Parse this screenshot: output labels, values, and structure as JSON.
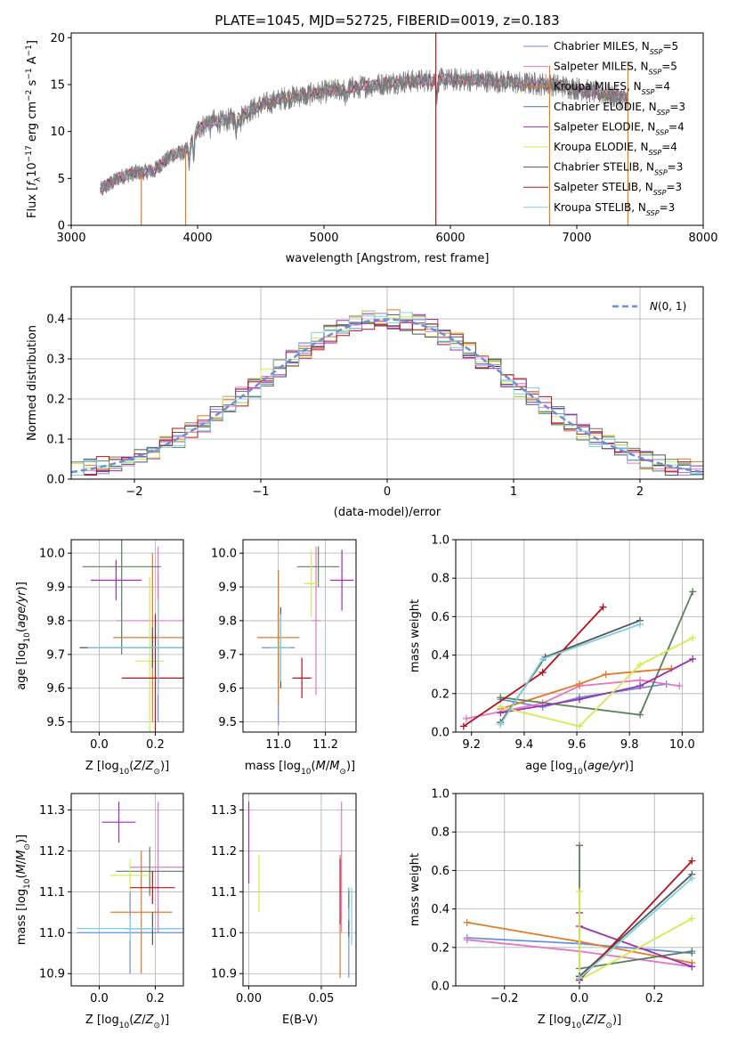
{
  "figure": {
    "title": "PLATE=1045, MJD=52725, FIBERID=0019, z=0.183"
  },
  "colors": [
    "#6b8fdc",
    "#e377c2",
    "#e07b28",
    "#5a7f5a",
    "#9b2fae",
    "#d4ea4f",
    "#555555",
    "#b5121b",
    "#7fd1e0"
  ],
  "chart_data": [
    {
      "id": "spectrum",
      "type": "line",
      "title": "PLATE=1045, MJD=52725, FIBERID=0019, z=0.183",
      "xlabel": "wavelength [Angstrom, rest frame]",
      "ylabel": "Flux [f_λ10^-17 erg cm^-2 s^-1 A^-1]",
      "xlim": [
        3000,
        8000
      ],
      "ylim": [
        0,
        20.5
      ],
      "xticks": [
        3000,
        4000,
        5000,
        6000,
        7000,
        8000
      ],
      "yticks": [
        0,
        5,
        10,
        15,
        20
      ],
      "grid": false,
      "legend_position": "top-right",
      "continuum": {
        "x": [
          3230,
          3400,
          3500,
          3650,
          3750,
          3800,
          3900,
          4000,
          4100,
          4200,
          4300,
          4500,
          4700,
          5000,
          5300,
          5600,
          5900,
          6200,
          6500,
          6800,
          7000,
          7200,
          7350,
          7400
        ],
        "y": [
          3.8,
          5.2,
          5.6,
          5.8,
          7.0,
          7.5,
          7.8,
          10.2,
          11.2,
          11.0,
          11.5,
          12.8,
          13.6,
          14.2,
          14.8,
          15.3,
          15.5,
          15.5,
          15.2,
          15.0,
          14.6,
          14.0,
          13.6,
          13.5
        ]
      },
      "series": [
        {
          "name": "Chabrier MILES, N_SSP=5",
          "label_main": "Chabrier MILES, N",
          "label_sub": "SSP",
          "label_tail": "=5"
        },
        {
          "name": "Salpeter MILES, N_SSP=5",
          "label_main": "Salpeter MILES, N",
          "label_sub": "SSP",
          "label_tail": "=5"
        },
        {
          "name": "Kroupa MILES, N_SSP=4",
          "label_main": "Kroupa MILES, N",
          "label_sub": "SSP",
          "label_tail": "=4"
        },
        {
          "name": "Chabrier ELODIE, N_SSP=3",
          "label_main": "Chabrier ELODIE, N",
          "label_sub": "SSP",
          "label_tail": "=3"
        },
        {
          "name": "Salpeter ELODIE, N_SSP=4",
          "label_main": "Salpeter ELODIE, N",
          "label_sub": "SSP",
          "label_tail": "=4"
        },
        {
          "name": "Kroupa ELODIE, N_SSP=4",
          "label_main": "Kroupa ELODIE, N",
          "label_sub": "SSP",
          "label_tail": "=4"
        },
        {
          "name": "Chabrier STELIB, N_SSP=3",
          "label_main": "Chabrier STELIB, N",
          "label_sub": "SSP",
          "label_tail": "=3"
        },
        {
          "name": "Salpeter STELIB, N_SSP=3",
          "label_main": "Salpeter STELIB, N",
          "label_sub": "SSP",
          "label_tail": "=3"
        },
        {
          "name": "Kroupa STELIB, N_SSP=3",
          "label_main": "Kroupa STELIB, N",
          "label_sub": "SSP",
          "label_tail": "=3"
        }
      ]
    },
    {
      "id": "residuals",
      "type": "histogram",
      "xlabel": "(data-model)/error",
      "ylabel": "Normed distribution",
      "xlim": [
        -2.5,
        2.5
      ],
      "ylim": [
        0,
        0.48
      ],
      "xticks": [
        -2,
        -1,
        0,
        1,
        2
      ],
      "yticks": [
        0.0,
        0.1,
        0.2,
        0.3,
        0.4
      ],
      "grid": true,
      "legend_position": "top-right",
      "bin_width": 0.1,
      "reference_label": "N(0,1)",
      "reference_mean": 0,
      "reference_sigma": 1
    },
    {
      "id": "age-vs-Z",
      "type": "errorbar",
      "xlabel": "Z [log10(Z/Z⊙)]",
      "ylabel": "age [log10(age/yr)]",
      "xlim": [
        -0.1,
        0.3
      ],
      "ylim": [
        9.47,
        10.04
      ],
      "xticks": [
        0.0,
        0.2
      ],
      "yticks": [
        9.5,
        9.6,
        9.7,
        9.8,
        9.9,
        10.0
      ],
      "grid": true,
      "points": [
        {
          "x": 0.21,
          "y": 9.72,
          "xerr": 0.25,
          "yerr": 0.22
        },
        {
          "x": 0.21,
          "y": 9.8,
          "xerr": 0.15,
          "yerr": 0.22
        },
        {
          "x": 0.19,
          "y": 9.75,
          "xerr": 0.14,
          "yerr": 0.25
        },
        {
          "x": 0.08,
          "y": 9.96,
          "xerr": 0.14,
          "yerr": 0.26
        },
        {
          "x": 0.06,
          "y": 9.92,
          "xerr": 0.09,
          "yerr": 0.06
        },
        {
          "x": 0.18,
          "y": 9.68,
          "xerr": 0.05,
          "yerr": 0.25
        },
        {
          "x": 0.19,
          "y": 9.72,
          "xerr": 0.26,
          "yerr": 0.06
        },
        {
          "x": 0.2,
          "y": 9.63,
          "xerr": 0.12,
          "yerr": 0.19
        },
        {
          "x": 0.21,
          "y": 9.72,
          "xerr": 0.25,
          "yerr": 0.14
        }
      ]
    },
    {
      "id": "age-vs-mass",
      "type": "errorbar",
      "xlabel": "mass [log10(M/M⊙)]",
      "ylabel": "",
      "xlim": [
        10.85,
        11.33
      ],
      "ylim": [
        9.47,
        10.04
      ],
      "xticks": [
        11.0,
        11.2
      ],
      "yticks": [
        9.5,
        9.6,
        9.7,
        9.8,
        9.9,
        10.0
      ],
      "grid": true,
      "points": [
        {
          "x": 11.0,
          "y": 9.72,
          "xerr": 0.07,
          "yerr": 0.23
        },
        {
          "x": 11.16,
          "y": 9.8,
          "xerr": 0.02,
          "yerr": 0.22
        },
        {
          "x": 11.0,
          "y": 9.75,
          "xerr": 0.09,
          "yerr": 0.2
        },
        {
          "x": 11.17,
          "y": 9.96,
          "xerr": 0.09,
          "yerr": 0.06
        },
        {
          "x": 11.27,
          "y": 9.92,
          "xerr": 0.05,
          "yerr": 0.09
        },
        {
          "x": 11.14,
          "y": 9.91,
          "xerr": 0.03,
          "yerr": 0.1
        },
        {
          "x": 11.01,
          "y": 9.72,
          "xerr": 0.03,
          "yerr": 0.12
        },
        {
          "x": 11.1,
          "y": 9.63,
          "xerr": 0.04,
          "yerr": 0.06
        },
        {
          "x": 11.01,
          "y": 9.72,
          "xerr": 0.04,
          "yerr": 0.1
        }
      ]
    },
    {
      "id": "weight-vs-age",
      "type": "line",
      "xlabel": "age [log10(age/yr)]",
      "ylabel": "mass weight",
      "xlim": [
        9.14,
        10.08
      ],
      "ylim": [
        0,
        1
      ],
      "xticks": [
        9.2,
        9.4,
        9.6,
        9.8,
        10.0
      ],
      "yticks": [
        0.0,
        0.2,
        0.4,
        0.6,
        0.8,
        1.0
      ],
      "grid": true,
      "series": [
        {
          "x": [
            9.31,
            9.47,
            9.61,
            9.94
          ],
          "y": [
            0.17,
            0.13,
            0.18,
            0.25
          ]
        },
        {
          "x": [
            9.18,
            9.47,
            9.61,
            9.84,
            9.99
          ],
          "y": [
            0.07,
            0.15,
            0.24,
            0.27,
            0.24
          ]
        },
        {
          "x": [
            9.31,
            9.61,
            9.71,
            9.96
          ],
          "y": [
            0.12,
            0.25,
            0.3,
            0.33
          ]
        },
        {
          "x": [
            9.31,
            9.84,
            10.04
          ],
          "y": [
            0.18,
            0.09,
            0.73
          ]
        },
        {
          "x": [
            9.31,
            9.61,
            9.84,
            10.04
          ],
          "y": [
            0.1,
            0.17,
            0.24,
            0.38
          ]
        },
        {
          "x": [
            9.31,
            9.61,
            9.84,
            10.04
          ],
          "y": [
            0.13,
            0.03,
            0.35,
            0.49
          ]
        },
        {
          "x": [
            9.31,
            9.48,
            9.84
          ],
          "y": [
            0.05,
            0.39,
            0.58
          ]
        },
        {
          "x": [
            9.17,
            9.47,
            9.7
          ],
          "y": [
            0.03,
            0.31,
            0.65
          ]
        },
        {
          "x": [
            9.31,
            9.47,
            9.84
          ],
          "y": [
            0.04,
            0.38,
            0.56
          ]
        }
      ]
    },
    {
      "id": "mass-vs-Z",
      "type": "errorbar",
      "xlabel": "Z [log10(Z/Z⊙)]",
      "ylabel": "mass [log10(M/M⊙)]",
      "xlim": [
        -0.1,
        0.3
      ],
      "ylim": [
        10.87,
        11.34
      ],
      "xticks": [
        0.0,
        0.2
      ],
      "yticks": [
        10.9,
        11.0,
        11.1,
        11.2,
        11.3
      ],
      "grid": true,
      "points": [
        {
          "x": 0.11,
          "y": 11.0,
          "xerr": 0.19,
          "yerr": 0.1
        },
        {
          "x": 0.21,
          "y": 11.16,
          "xerr": 0.1,
          "yerr": 0.16
        },
        {
          "x": 0.15,
          "y": 11.05,
          "xerr": 0.11,
          "yerr": 0.15
        },
        {
          "x": 0.18,
          "y": 11.15,
          "xerr": 0.12,
          "yerr": 0.06
        },
        {
          "x": 0.07,
          "y": 11.27,
          "xerr": 0.06,
          "yerr": 0.05
        },
        {
          "x": 0.11,
          "y": 11.14,
          "xerr": 0.07,
          "yerr": 0.04
        },
        {
          "x": 0.19,
          "y": 11.01,
          "xerr": 0.1,
          "yerr": 0.04
        },
        {
          "x": 0.19,
          "y": 11.11,
          "xerr": 0.08,
          "yerr": 0.04
        },
        {
          "x": 0.11,
          "y": 11.01,
          "xerr": 0.19,
          "yerr": 0.03
        }
      ]
    },
    {
      "id": "mass-vs-ebv",
      "type": "errorbar",
      "xlabel": "E(B-V)",
      "ylabel": "",
      "xlim": [
        -0.004,
        0.074
      ],
      "ylim": [
        10.87,
        11.34
      ],
      "xticks": [
        0.0,
        0.05
      ],
      "yticks": [
        10.9,
        11.0,
        11.1,
        11.2,
        11.3
      ],
      "grid": true,
      "points": [
        {
          "x": 0.069,
          "y": 11.0,
          "xerr": 0,
          "yerr": 0.11
        },
        {
          "x": 0.064,
          "y": 11.16,
          "xerr": 0,
          "yerr": 0.16
        },
        {
          "x": 0.063,
          "y": 11.04,
          "xerr": 0,
          "yerr": 0.15
        },
        {
          "x": 0.069,
          "y": 11.08,
          "xerr": 0,
          "yerr": 0.02
        },
        {
          "x": 0.0,
          "y": 11.22,
          "xerr": 0,
          "yerr": 0.1
        },
        {
          "x": 0.007,
          "y": 11.12,
          "xerr": 0,
          "yerr": 0.07
        },
        {
          "x": 0.069,
          "y": 11.01,
          "xerr": 0,
          "yerr": 0.02
        },
        {
          "x": 0.063,
          "y": 11.1,
          "xerr": 0,
          "yerr": 0.08
        },
        {
          "x": 0.071,
          "y": 11.04,
          "xerr": 0,
          "yerr": 0.07
        }
      ]
    },
    {
      "id": "weight-vs-Z",
      "type": "line",
      "xlabel": "Z [log10(Z/Z⊙)]",
      "ylabel": "mass weight",
      "xlim": [
        -0.33,
        0.33
      ],
      "ylim": [
        0,
        1
      ],
      "xticks": [
        -0.2,
        0.0,
        0.2
      ],
      "yticks": [
        0.0,
        0.2,
        0.4,
        0.6,
        0.8,
        1.0
      ],
      "grid": true,
      "series": [
        {
          "x": [
            -0.3,
            0.0,
            0.3
          ],
          "y": [
            0.25,
            0.22,
            0.17
          ]
        },
        {
          "x": [
            -0.3,
            0.0,
            0.3
          ],
          "y": [
            0.24,
            0.18,
            0.1
          ]
        },
        {
          "x": [
            -0.3,
            0.0,
            0.3
          ],
          "y": [
            0.33,
            0.23,
            0.12
          ]
        },
        {
          "x": [
            0.0,
            0.0,
            0.3
          ],
          "y": [
            0.73,
            0.09,
            0.18
          ]
        },
        {
          "x": [
            0.0,
            0.0,
            0.3
          ],
          "y": [
            0.38,
            0.31,
            0.1
          ]
        },
        {
          "x": [
            0.0,
            0.0,
            0.3
          ],
          "y": [
            0.49,
            0.03,
            0.35
          ]
        },
        {
          "x": [
            0.0,
            0.0,
            0.3
          ],
          "y": [
            0.05,
            0.05,
            0.58
          ]
        },
        {
          "x": [
            0.0,
            0.0,
            0.3
          ],
          "y": [
            0.03,
            0.03,
            0.65
          ]
        },
        {
          "x": [
            0.0,
            0.0,
            0.3
          ],
          "y": [
            0.04,
            0.04,
            0.56
          ]
        }
      ]
    }
  ]
}
